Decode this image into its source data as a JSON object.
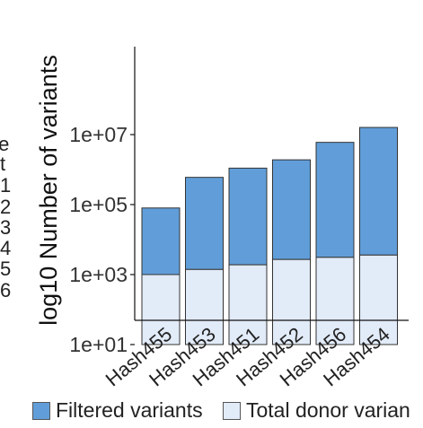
{
  "left_fragments": [
    "/e",
    "t",
    "1",
    "2",
    "3",
    "4",
    "5",
    "6"
  ],
  "chart_data": {
    "type": "bar",
    "stacked": true,
    "log_scale": true,
    "categories": [
      "Hash455",
      "Hash453",
      "Hash451",
      "Hash452",
      "Hash456",
      "Hash454"
    ],
    "series": [
      {
        "name": "Filtered variants",
        "color": "#619ed9",
        "values": [
          80000,
          600000,
          1100000,
          1900000,
          6000000,
          16000000
        ]
      },
      {
        "name": "Total donor varian",
        "color": "#e2ebf8",
        "values": [
          1000,
          1400,
          1900,
          2700,
          3100,
          3600
        ]
      }
    ],
    "ylabel": "log10 Number of variants",
    "yticks": [
      {
        "value": 10,
        "label": "1e+01"
      },
      {
        "value": 1000,
        "label": "1e+03"
      },
      {
        "value": 100000,
        "label": "1e+05"
      },
      {
        "value": 10000000,
        "label": "1e+07"
      }
    ],
    "ylim": [
      1,
      30000000
    ],
    "bar_base": 10,
    "grid": false,
    "legend_position": "bottom"
  }
}
